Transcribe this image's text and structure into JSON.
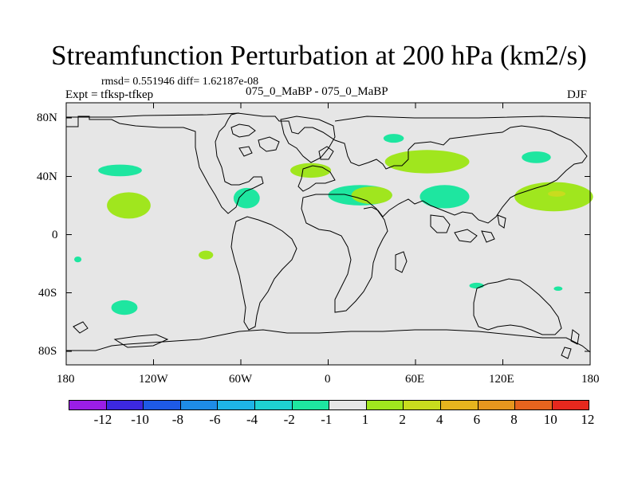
{
  "title": "Streamfunction Perturbation at 200 hPa (km2/s)",
  "stats": "rmsd= 0.551946 diff= 1.62187e-08",
  "left_label": "Expt = tfksp-tfkep",
  "center_label": "075_0_MaBP - 075_0_MaBP",
  "right_label": "DJF",
  "x_ticks": [
    "180",
    "120W",
    "60W",
    "0",
    "60E",
    "120E",
    "180"
  ],
  "y_ticks": [
    "80N",
    "40N",
    "0",
    "40S",
    "80S"
  ],
  "colors": {
    "ocean": "#e6e6e6",
    "land_outline": "#000000"
  },
  "colorbar": {
    "colors": [
      "#9a1ee6",
      "#3c28e0",
      "#1e5ae6",
      "#1e8ce6",
      "#1eb4e6",
      "#1ed2d2",
      "#1ee6a0",
      "#e6e6e6",
      "#a0e61e",
      "#c8dc1e",
      "#e6b41e",
      "#e6961e",
      "#e6641e",
      "#e6281e"
    ],
    "labels": [
      "-12",
      "-10",
      "-8",
      "-6",
      "-4",
      "-2",
      "-1",
      "1",
      "2",
      "4",
      "6",
      "8",
      "10",
      "12"
    ]
  },
  "anomalies": [
    {
      "name": "n-pacific-neg-blob",
      "sign": "negative",
      "lon": -143,
      "lat": 44,
      "rx_deg": 15,
      "ry_deg": 4
    },
    {
      "name": "e-pacific-pos-blob",
      "sign": "positive",
      "lon": -137,
      "lat": 20,
      "rx_deg": 15,
      "ry_deg": 9
    },
    {
      "name": "far-east-pacific-neg-blob",
      "sign": "negative",
      "lon": -172,
      "lat": -17,
      "rx_deg": 2.5,
      "ry_deg": 2
    },
    {
      "name": "tropical-east-pacific-pos-blob",
      "sign": "positive",
      "lon": -84,
      "lat": -14,
      "rx_deg": 5,
      "ry_deg": 3
    },
    {
      "name": "s-pacific-neg-blob",
      "sign": "negative",
      "lon": -140,
      "lat": -50,
      "rx_deg": 9,
      "ry_deg": 5
    },
    {
      "name": "n-atlantic-neg-blob",
      "sign": "negative",
      "lon": -56,
      "lat": 25,
      "rx_deg": 9,
      "ry_deg": 7
    },
    {
      "name": "atlantic-pos-blob",
      "sign": "positive",
      "lon": -12,
      "lat": 44,
      "rx_deg": 14,
      "ry_deg": 5
    },
    {
      "name": "europe-neg-blob",
      "sign": "negative",
      "lon": 45,
      "lat": 66,
      "rx_deg": 7,
      "ry_deg": 3
    },
    {
      "name": "n-africa-mixed-blob",
      "sign": "negative",
      "lon": 22,
      "lat": 27,
      "rx_deg": 22,
      "ry_deg": 7
    },
    {
      "name": "n-africa-pos-core",
      "sign": "positive",
      "lon": 30,
      "lat": 27,
      "rx_deg": 14,
      "ry_deg": 6
    },
    {
      "name": "central-asia-pos-blob",
      "sign": "positive",
      "lon": 68,
      "lat": 50,
      "rx_deg": 29,
      "ry_deg": 8
    },
    {
      "name": "s-asia-neg-blob",
      "sign": "negative",
      "lon": 80,
      "lat": 26,
      "rx_deg": 17,
      "ry_deg": 8
    },
    {
      "name": "ne-asia-neg-blob",
      "sign": "negative",
      "lon": 143,
      "lat": 53,
      "rx_deg": 10,
      "ry_deg": 4
    },
    {
      "name": "nw-pacific-pos-blob",
      "sign": "positive",
      "lon": 155,
      "lat": 26,
      "rx_deg": 27,
      "ry_deg": 10
    },
    {
      "name": "nw-pacific-pos-core",
      "sign": "stronger-positive",
      "lon": 157,
      "lat": 28,
      "rx_deg": 6,
      "ry_deg": 2
    },
    {
      "name": "indian-ocean-neg-blob",
      "sign": "negative",
      "lon": 102,
      "lat": -35,
      "rx_deg": 5,
      "ry_deg": 2
    },
    {
      "name": "sw-pacific-neg-blob",
      "sign": "negative",
      "lon": 158,
      "lat": -37,
      "rx_deg": 3,
      "ry_deg": 1.5
    }
  ]
}
